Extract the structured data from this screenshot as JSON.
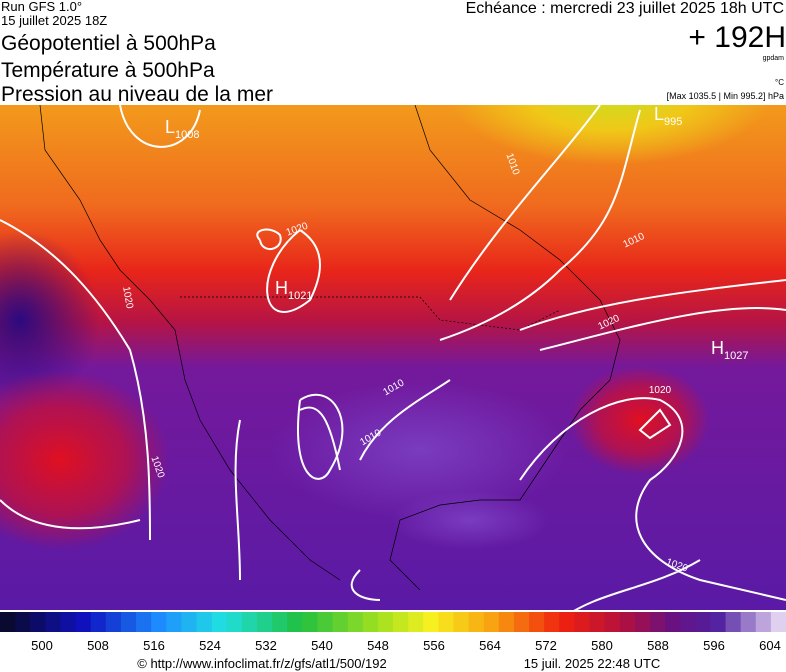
{
  "header": {
    "run": "Run GFS 1.0°",
    "run_date": "15 juillet 2025 18Z",
    "titles": [
      "Géopotentiel à 500hPa",
      "Température à 500hPa",
      "Pression au niveau de la mer"
    ],
    "valid": "Echéance : mercredi 23 juillet 2025 18h UTC",
    "lead": "+ 192H",
    "unit_height": "gpdam",
    "unit_temp": "°C",
    "range": "[Max 1035.5 | Min 995.2] hPa"
  },
  "map": {
    "centers": [
      {
        "letter": "L",
        "value": "1008"
      },
      {
        "letter": "H",
        "value": "1021"
      },
      {
        "letter": "H",
        "value": "1027"
      },
      {
        "letter": "L",
        "value": "995"
      }
    ],
    "isobar_labels": [
      "1010",
      "1010",
      "1010",
      "1010",
      "1020",
      "1020",
      "1020",
      "1020",
      "1020",
      "1020"
    ]
  },
  "colorbar": {
    "ticks": [
      500,
      508,
      516,
      524,
      532,
      540,
      548,
      556,
      564,
      572,
      580,
      588,
      596,
      604
    ]
  },
  "footer": {
    "source": "© http://www.infoclimat.fr/z/gfs/atl1/500/192",
    "generated": "15 juil. 2025 22:48 UTC"
  }
}
